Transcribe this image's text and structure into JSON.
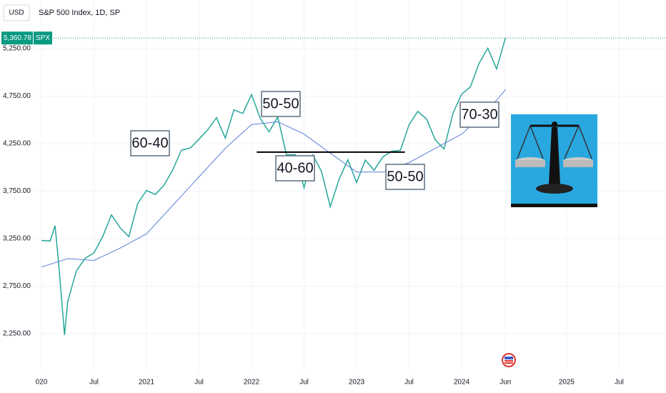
{
  "chart_data": {
    "type": "line",
    "title": "S&P 500 Index, 1D, SP",
    "currency": "USD",
    "symbol": "SPX",
    "price_label": {
      "value": 5360.78,
      "label": "5,360.78"
    },
    "series": [
      {
        "color": "#26a69a",
        "x": [
          2020.0,
          2020.083,
          2020.13,
          2020.167,
          2020.22,
          2020.25,
          2020.333,
          2020.417,
          2020.5,
          2020.583,
          2020.667,
          2020.75,
          2020.833,
          2020.917,
          2021.0,
          2021.083,
          2021.167,
          2021.25,
          2021.333,
          2021.417,
          2021.5,
          2021.583,
          2021.667,
          2021.75,
          2021.833,
          2021.917,
          2022.0,
          2022.083,
          2022.167,
          2022.25,
          2022.333,
          2022.417,
          2022.5,
          2022.583,
          2022.667,
          2022.75,
          2022.833,
          2022.917,
          2023.0,
          2023.083,
          2023.167,
          2023.25,
          2023.333,
          2023.417,
          2023.5,
          2023.583,
          2023.667,
          2023.75,
          2023.833,
          2023.917,
          2024.0,
          2024.083,
          2024.167,
          2024.25,
          2024.333,
          2024.417
        ],
        "values": [
          3230,
          3225,
          3386,
          2954,
          2237,
          2585,
          2912,
          3044,
          3100,
          3271,
          3500,
          3363,
          3270,
          3622,
          3756,
          3714,
          3811,
          3973,
          4181,
          4204,
          4297,
          4395,
          4523,
          4308,
          4605,
          4567,
          4766,
          4516,
          4374,
          4530,
          4132,
          4132,
          3785,
          4130,
          3955,
          3586,
          3872,
          4080,
          3840,
          4077,
          3970,
          4109,
          4169,
          4180,
          4450,
          4589,
          4508,
          4288,
          4194,
          4568,
          4770,
          4846,
          5096,
          5254,
          5036,
          5360.78
        ]
      },
      {
        "color": "#5b7fd8",
        "x": [
          2020.0,
          2020.25,
          2020.5,
          2020.75,
          2021.0,
          2021.25,
          2021.5,
          2021.75,
          2022.0,
          2022.25,
          2022.5,
          2022.75,
          2023.0,
          2023.25,
          2023.5,
          2023.75,
          2024.0,
          2024.25,
          2024.42
        ],
        "values": [
          2950,
          3040,
          3020,
          3150,
          3300,
          3600,
          3900,
          4200,
          4450,
          4480,
          4350,
          4150,
          3950,
          3950,
          4050,
          4200,
          4350,
          4600,
          4820
        ]
      }
    ],
    "level": {
      "value": 4160,
      "x": [
        2022.05,
        2023.46
      ],
      "color": "#000000"
    },
    "annotations": [
      "60-40",
      "50-50",
      "40-60",
      "50-50",
      "70-30"
    ],
    "xlim": [
      2019.932,
      2025.946
    ],
    "ylim": [
      1851,
      5761
    ],
    "xticks": [
      {
        "value": 2020,
        "label": "020"
      },
      {
        "value": 2020.5,
        "label": "Jul"
      },
      2021,
      {
        "value": 2021.5,
        "label": "Jul"
      },
      2022,
      {
        "value": 2022.5,
        "label": "Jul"
      },
      2023,
      {
        "value": 2023.5,
        "label": "Jul"
      },
      2024,
      {
        "value": 2024.417,
        "label": "Jun"
      },
      2025,
      {
        "value": 2025.5,
        "label": "Jul"
      }
    ],
    "yticks": [
      {
        "value": 2250,
        "label": "2,250.00"
      },
      {
        "value": 2750,
        "label": "2,750.00"
      },
      {
        "value": 3250,
        "label": "3,250.00"
      },
      {
        "value": 3750,
        "label": "3,750.00"
      },
      {
        "value": 4250,
        "label": "4,250.00"
      },
      {
        "value": 4750,
        "label": "4,750.00"
      },
      {
        "value": 5250,
        "label": "5,250.00"
      }
    ],
    "grid": true
  }
}
